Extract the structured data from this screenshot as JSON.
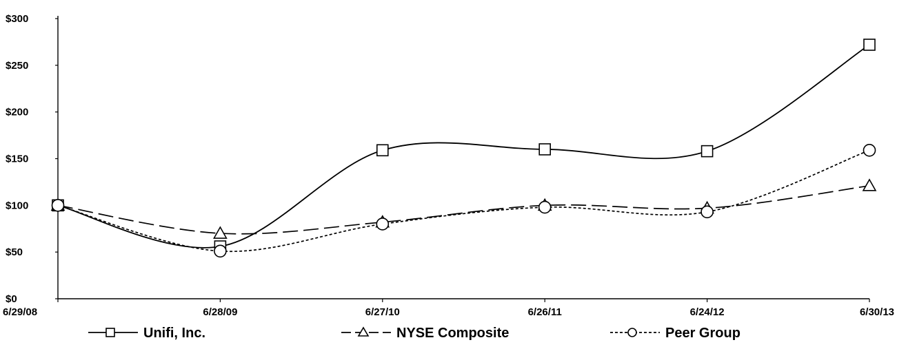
{
  "chart_data": {
    "type": "line",
    "title": "",
    "xlabel": "",
    "ylabel": "",
    "categories": [
      "6/29/08",
      "6/28/09",
      "6/27/10",
      "6/26/11",
      "6/24/12",
      "6/30/13"
    ],
    "y_ticks": [
      "$0",
      "$50",
      "$100",
      "$150",
      "$200",
      "$250",
      "$300"
    ],
    "ylim": [
      0,
      300
    ],
    "grid": false,
    "legend_position": "bottom",
    "series": [
      {
        "name": "Unifi, Inc.",
        "marker": "square",
        "line_style": "solid",
        "values": [
          100,
          56,
          159,
          160,
          158,
          272
        ]
      },
      {
        "name": "NYSE Composite",
        "marker": "triangle",
        "line_style": "long-dash",
        "values": [
          100,
          70,
          82,
          100,
          97,
          121
        ]
      },
      {
        "name": "Peer Group",
        "marker": "circle",
        "line_style": "dotted",
        "values": [
          100,
          51,
          80,
          98,
          93,
          159
        ]
      }
    ],
    "colors": {
      "line": "#000000",
      "background": "#ffffff"
    }
  }
}
